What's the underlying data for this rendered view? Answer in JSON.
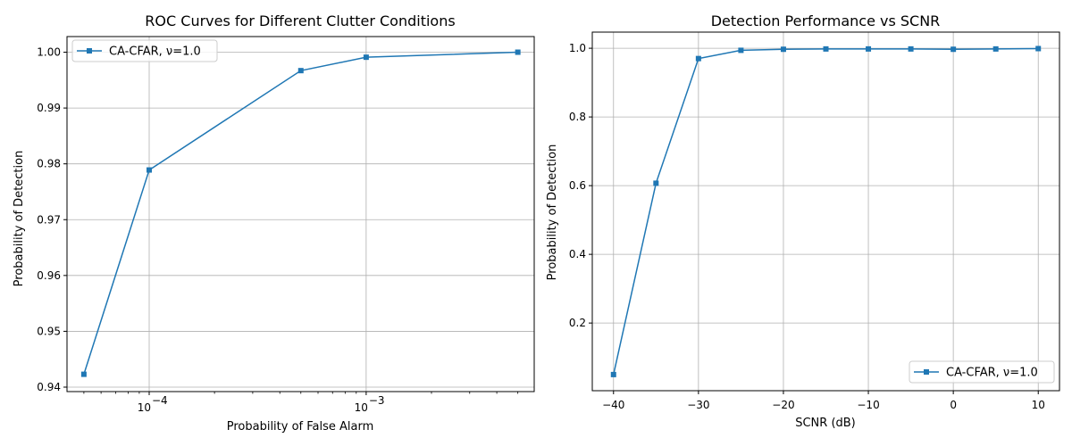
{
  "chart_data": [
    {
      "type": "line",
      "title": "ROC Curves for Different Clutter Conditions",
      "xlabel": "Probability of False Alarm",
      "ylabel": "Probability of Detection",
      "xscale": "log",
      "xlim": [
        4.18e-05,
        0.00595
      ],
      "ylim": [
        0.9392,
        1.0028
      ],
      "x_ticks": [
        {
          "value": 0.0001,
          "base": "10",
          "exp": "−4"
        },
        {
          "value": 0.001,
          "base": "10",
          "exp": "−3"
        }
      ],
      "y_ticks": [
        "0.94",
        "0.95",
        "0.96",
        "0.97",
        "0.98",
        "0.99",
        "1.00"
      ],
      "grid": true,
      "legend_position": "upper-left",
      "series": [
        {
          "name": "CA-CFAR, ν=1.0",
          "color": "#1f77b4",
          "marker": "square",
          "x": [
            5e-05,
            0.0001,
            0.0005,
            0.001,
            0.005
          ],
          "y": [
            0.9423,
            0.9789,
            0.9967,
            0.9991,
            1.0
          ]
        }
      ]
    },
    {
      "type": "line",
      "title": "Detection Performance vs SCNR",
      "xlabel": "SCNR (dB)",
      "ylabel": "Probability of Detection",
      "xscale": "linear",
      "xlim": [
        -42.5,
        12.5
      ],
      "ylim": [
        0.003,
        1.047
      ],
      "x_ticks": [
        "−40",
        "−30",
        "−20",
        "−10",
        "0",
        "10"
      ],
      "y_ticks": [
        "0.2",
        "0.4",
        "0.6",
        "0.8",
        "1.0"
      ],
      "grid": true,
      "legend_position": "lower-right",
      "series": [
        {
          "name": "CA-CFAR, ν=1.0",
          "color": "#1f77b4",
          "marker": "square",
          "x": [
            -40,
            -35,
            -30,
            -25,
            -20,
            -15,
            -10,
            -5,
            0,
            5,
            10
          ],
          "y": [
            0.05,
            0.607,
            0.97,
            0.994,
            0.997,
            0.998,
            0.998,
            0.998,
            0.997,
            0.998,
            0.999
          ]
        }
      ]
    }
  ]
}
